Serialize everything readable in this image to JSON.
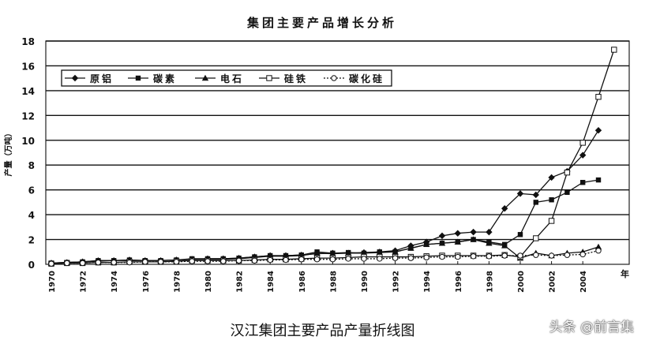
{
  "chart_data": {
    "type": "line",
    "title": "集团主要产品增长分析",
    "ylabel": "产量（万吨）",
    "xlabel": "年",
    "ylim": [
      0,
      18
    ],
    "yticks": [
      0,
      2,
      4,
      6,
      8,
      10,
      12,
      14,
      16,
      18
    ],
    "xticks": [
      1970,
      1972,
      1974,
      1976,
      1978,
      1980,
      1982,
      1984,
      1986,
      1988,
      1990,
      1992,
      1994,
      1996,
      1998,
      2000,
      2002,
      2004
    ],
    "grid": "horizontal",
    "legend_position": "top-left",
    "x": [
      1970,
      1971,
      1972,
      1973,
      1974,
      1975,
      1976,
      1977,
      1978,
      1979,
      1980,
      1981,
      1982,
      1983,
      1984,
      1985,
      1986,
      1987,
      1988,
      1989,
      1990,
      1991,
      1992,
      1993,
      1994,
      1995,
      1996,
      1997,
      1998,
      1999,
      2000,
      2001,
      2002,
      2003,
      2004,
      2005,
      2006
    ],
    "series": [
      {
        "name": "原铝",
        "marker": "diamond",
        "values": [
          0.1,
          0.15,
          0.2,
          0.3,
          0.3,
          0.35,
          0.3,
          0.3,
          0.35,
          0.4,
          0.45,
          0.45,
          0.5,
          0.6,
          0.7,
          0.7,
          0.75,
          0.85,
          0.9,
          0.9,
          0.95,
          1.0,
          1.1,
          1.5,
          1.8,
          2.3,
          2.5,
          2.6,
          2.6,
          4.5,
          5.7,
          5.6,
          7.0,
          7.5,
          8.8,
          10.8,
          null
        ]
      },
      {
        "name": "碳素",
        "marker": "square",
        "values": [
          0.1,
          0.15,
          0.2,
          0.3,
          0.3,
          0.35,
          0.3,
          0.3,
          0.35,
          0.45,
          0.45,
          0.45,
          0.5,
          0.6,
          0.7,
          0.7,
          0.75,
          1.0,
          0.9,
          0.95,
          0.9,
          1.0,
          1.0,
          1.3,
          1.6,
          1.7,
          1.8,
          2.0,
          1.8,
          1.6,
          2.4,
          5.0,
          5.2,
          5.8,
          6.6,
          6.8,
          null
        ]
      },
      {
        "name": "电石",
        "marker": "triangle",
        "values": [
          0.1,
          0.15,
          0.2,
          0.25,
          0.3,
          0.3,
          0.3,
          0.3,
          0.35,
          0.4,
          0.4,
          0.4,
          0.45,
          0.55,
          0.65,
          0.65,
          0.7,
          0.9,
          0.85,
          0.9,
          0.9,
          0.95,
          1.0,
          1.3,
          1.6,
          1.7,
          1.8,
          2.0,
          1.7,
          1.5,
          0.5,
          0.9,
          0.7,
          0.9,
          1.0,
          1.4,
          null
        ]
      },
      {
        "name": "硅铁",
        "marker": "square-open",
        "values": [
          0.05,
          0.1,
          0.1,
          0.15,
          0.15,
          0.2,
          0.2,
          0.2,
          0.25,
          0.3,
          0.3,
          0.3,
          0.3,
          0.35,
          0.4,
          0.4,
          0.45,
          0.5,
          0.5,
          0.55,
          0.6,
          0.6,
          0.6,
          0.6,
          0.65,
          0.7,
          0.7,
          0.7,
          0.7,
          0.75,
          0.6,
          2.1,
          3.5,
          7.4,
          9.8,
          13.5,
          17.3
        ]
      },
      {
        "name": "碳化硅",
        "marker": "circle-open",
        "values": [
          0.05,
          0.1,
          0.1,
          0.15,
          0.15,
          0.15,
          0.2,
          0.2,
          0.2,
          0.25,
          0.25,
          0.25,
          0.3,
          0.3,
          0.35,
          0.35,
          0.4,
          0.4,
          0.4,
          0.45,
          0.45,
          0.45,
          0.5,
          0.5,
          0.55,
          0.6,
          0.6,
          0.65,
          0.65,
          0.7,
          0.7,
          0.75,
          0.7,
          0.75,
          0.8,
          1.1,
          null
        ]
      }
    ]
  },
  "caption": "汉江集团主要产品产量折线图",
  "watermark": "头条 @前言集"
}
